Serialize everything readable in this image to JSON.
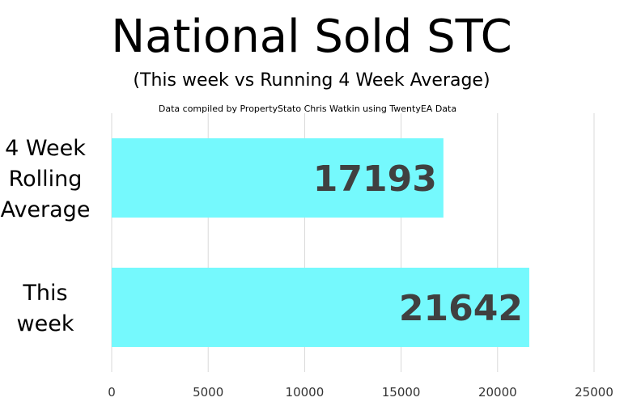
{
  "chart_data": {
    "type": "bar",
    "orientation": "horizontal",
    "title": "National Sold STC",
    "subtitle": "(This week vs Running 4 Week Average)",
    "note": "Data compiled by PropertyStato Chris Watkin using TwentyEA Data",
    "categories": [
      [
        "4 Week",
        "Rolling",
        "Average"
      ],
      [
        "This",
        "week"
      ]
    ],
    "values": [
      17193,
      21642
    ],
    "data_labels": [
      "17193",
      "21642"
    ],
    "xlim": [
      0,
      25000
    ],
    "xticks": [
      0,
      5000,
      10000,
      15000,
      20000,
      25000
    ],
    "xtick_labels": [
      "0",
      "5000",
      "10000",
      "15000",
      "20000",
      "25000"
    ],
    "grid": true,
    "bar_color": "#75F9FD",
    "label_color": "#404040"
  }
}
